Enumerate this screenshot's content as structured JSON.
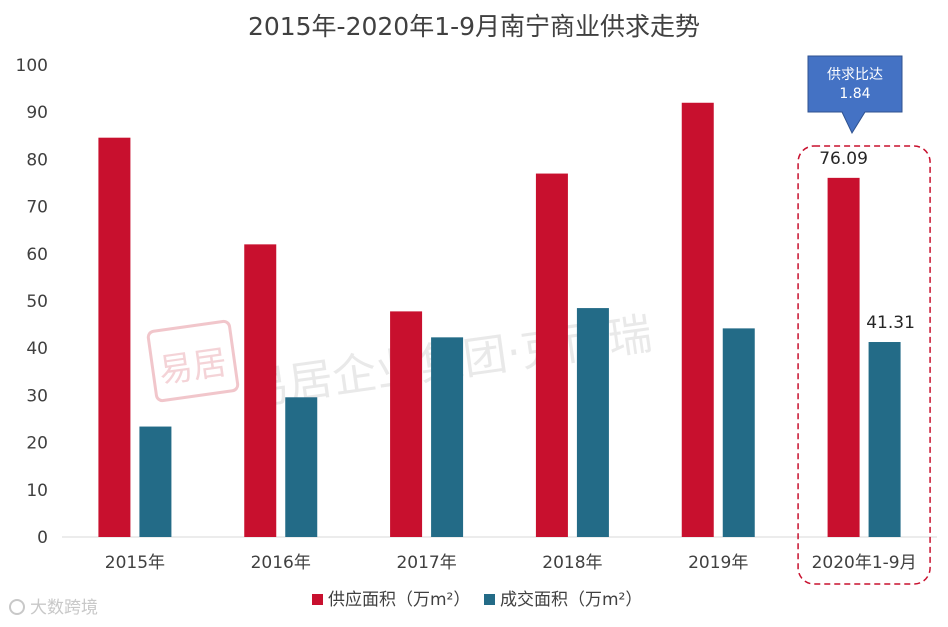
{
  "chart_data": {
    "type": "bar",
    "title": "2015年-2020年1-9月南宁商业供求走势",
    "categories": [
      "2015年",
      "2016年",
      "2017年",
      "2018年",
      "2019年",
      "2020年1-9月"
    ],
    "series": [
      {
        "name": "供应面积（万m²）",
        "color": "#c8102e",
        "values": [
          84.6,
          62.0,
          47.8,
          77.0,
          92.0,
          76.09
        ]
      },
      {
        "name": "成交面积（万m²）",
        "color": "#236b87",
        "values": [
          23.4,
          29.6,
          42.3,
          48.5,
          44.2,
          41.31
        ]
      }
    ],
    "y_ticks": [
      "0",
      "10",
      "20",
      "30",
      "40",
      "50",
      "60",
      "70",
      "80",
      "90",
      "100"
    ],
    "ylim": [
      0,
      100
    ],
    "grid": false,
    "legend_position": "bottom",
    "data_labels": [
      {
        "series": 0,
        "index": 5,
        "text": "76.09"
      },
      {
        "series": 1,
        "index": 5,
        "text": "41.31"
      }
    ],
    "callout": {
      "line1": "供求比达",
      "line2": "1.84",
      "color": "#4472c4"
    },
    "highlight": {
      "category_index": 5,
      "border_color": "#c8102e"
    }
  },
  "watermark": {
    "logo_char": "易居",
    "text": "易居企业集团·克而瑞"
  },
  "corner_logo": "大数跨境"
}
